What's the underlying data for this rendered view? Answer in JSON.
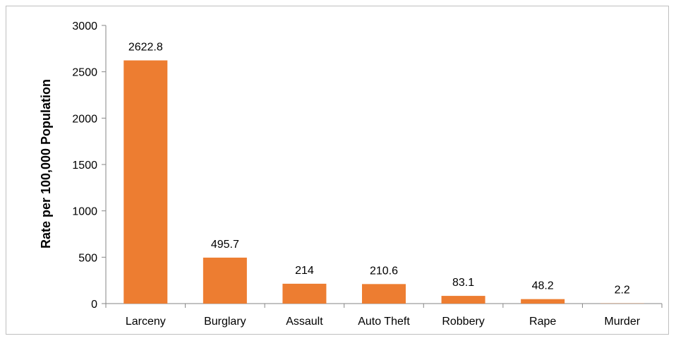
{
  "chart_data": {
    "type": "bar",
    "title": "",
    "xlabel": "",
    "ylabel": "Rate per 100,000 Population",
    "categories": [
      "Larceny",
      "Burglary",
      "Assault",
      "Auto Theft",
      "Robbery",
      "Rape",
      "Murder"
    ],
    "values": [
      2622.8,
      495.7,
      214,
      210.6,
      83.1,
      48.2,
      2.2
    ],
    "data_labels": [
      "2622.8",
      "495.7",
      "214",
      "210.6",
      "83.1",
      "48.2",
      "2.2"
    ],
    "ylim": [
      0,
      3000
    ],
    "yticks": [
      0,
      500,
      1000,
      1500,
      2000,
      2500,
      3000
    ],
    "bar_color": "#ed7d31",
    "grid": false,
    "legend": "none"
  }
}
